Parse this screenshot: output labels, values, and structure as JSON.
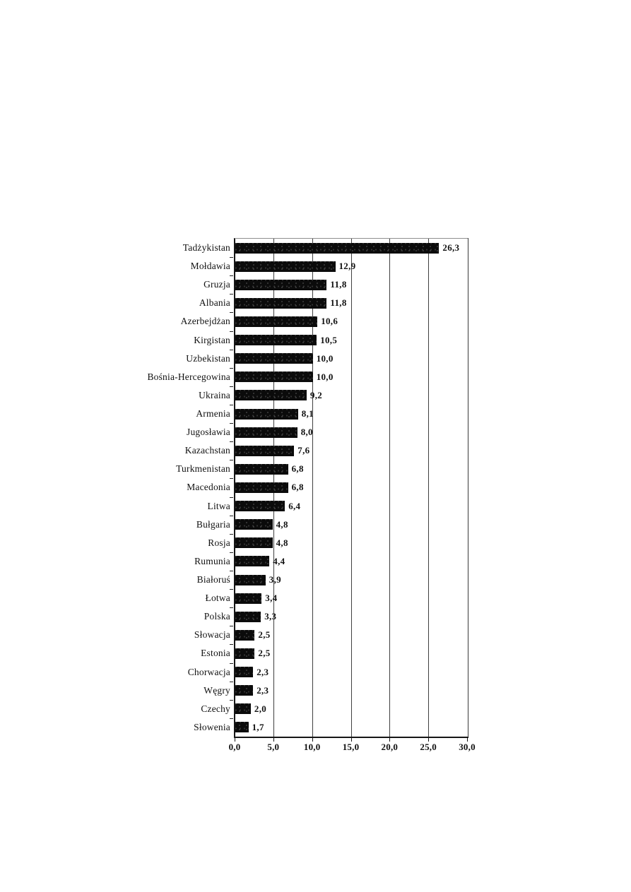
{
  "page": {
    "background_color": "#ffffff",
    "description_colors": {
      "bar_color": "#0b0b0b",
      "axis_color": "#161616",
      "gridline_color": "#404040",
      "text_color": "#111111"
    }
  },
  "chart_data": {
    "type": "bar",
    "orientation": "horizontal",
    "title": "",
    "xlabel": "",
    "ylabel": "",
    "xlim": [
      0,
      30
    ],
    "grid": "vertical gridlines at every 5 units",
    "legend": "none",
    "categories": [
      "Tadżykistan",
      "Mołdawia",
      "Gruzja",
      "Albania",
      "Azerbejdżan",
      "Kirgistan",
      "Uzbekistan",
      "Bośnia-Hercegowina",
      "Ukraina",
      "Armenia",
      "Jugosławia",
      "Kazachstan",
      "Turkmenistan",
      "Macedonia",
      "Litwa",
      "Bułgaria",
      "Rosja",
      "Rumunia",
      "Białoruś",
      "Łotwa",
      "Polska",
      "Słowacja",
      "Estonia",
      "Chorwacja",
      "Węgry",
      "Czechy",
      "Słowenia"
    ],
    "values": [
      26.3,
      12.9,
      11.8,
      11.8,
      10.6,
      10.5,
      10.0,
      10.0,
      9.2,
      8.1,
      8.0,
      7.6,
      6.8,
      6.8,
      6.4,
      4.8,
      4.8,
      4.4,
      3.9,
      3.4,
      3.3,
      2.5,
      2.5,
      2.3,
      2.3,
      2.0,
      1.7
    ],
    "value_labels": [
      "26,3",
      "12,9",
      "11,8",
      "11,8",
      "10,6",
      "10,5",
      "10,0",
      "10,0",
      "9,2",
      "8,1",
      "8,0",
      "7,6",
      "6,8",
      "6,8",
      "6,4",
      "4,8",
      "4,8",
      "4,4",
      "3,9",
      "3,4",
      "3,3",
      "2,5",
      "2,5",
      "2,3",
      "2,3",
      "2,0",
      "1,7"
    ],
    "x_ticks": [
      "0,0",
      "5,0",
      "10,0",
      "15,0",
      "20,0",
      "25,0",
      "30,0"
    ],
    "x_tick_values": [
      0,
      5,
      10,
      15,
      20,
      25,
      30
    ]
  }
}
